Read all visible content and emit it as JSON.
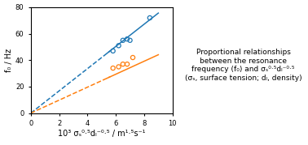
{
  "chart_data": {
    "type": "scatter",
    "x_label": "10³ σₛ⁰·⁵dₗ⁻⁰·⁵ / m¹·⁵s⁻¹",
    "y_label": "f₀ / Hz",
    "xlim": [
      0,
      10
    ],
    "ylim": [
      0,
      80
    ],
    "xticks": [
      0,
      2,
      4,
      6,
      8,
      10
    ],
    "yticks": [
      0,
      20,
      40,
      60,
      80
    ],
    "annotations": [
      "Proportional relationships\nbetween the resonance\nfrequency (f₀) and σₛ⁰·⁵dₗ⁻⁰·⁵\n(σₛ, surface tension; dₗ, density)"
    ],
    "series": [
      {
        "type": "scatter",
        "marker": "o",
        "color": "#1f77b4",
        "x": [
          5.8,
          6.2,
          6.5,
          6.8,
          7.0,
          8.4
        ],
        "values": [
          47,
          51,
          55,
          56,
          55,
          72
        ]
      },
      {
        "type": "line",
        "line_style": "dashed",
        "color": "#1f77b4",
        "x": [
          0.0,
          5.6
        ],
        "values": [
          0.0,
          47.04
        ]
      },
      {
        "type": "line",
        "line_style": "solid",
        "color": "#1f77b4",
        "x": [
          5.4,
          9.0
        ],
        "values": [
          45.36,
          75.6
        ]
      },
      {
        "type": "scatter",
        "marker": "o",
        "color": "#ff7f0e",
        "x": [
          5.8,
          6.2,
          6.5,
          6.8,
          7.2
        ],
        "values": [
          34,
          35,
          37,
          37,
          42
        ]
      },
      {
        "type": "line",
        "line_style": "dashed",
        "color": "#ff7f0e",
        "x": [
          0.0,
          5.6
        ],
        "values": [
          0.0,
          27.44
        ]
      },
      {
        "type": "line",
        "line_style": "solid",
        "color": "#ff7f0e",
        "x": [
          5.4,
          9.0
        ],
        "values": [
          26.46,
          44.1
        ]
      }
    ]
  }
}
